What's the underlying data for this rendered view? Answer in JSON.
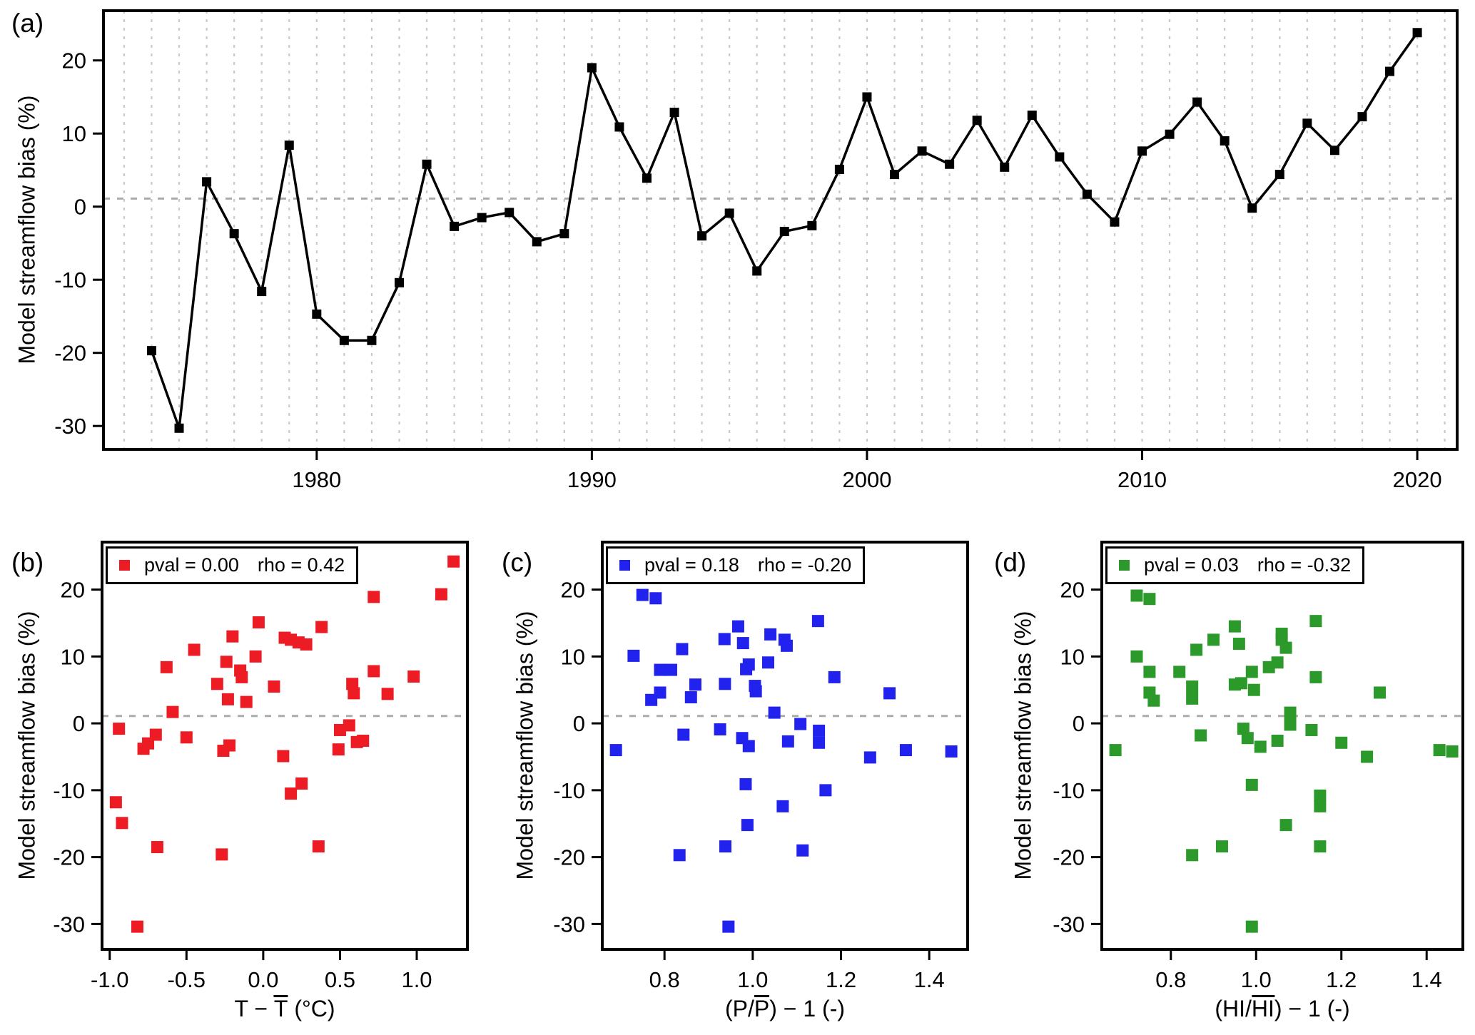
{
  "figure": {
    "background": "#FFFFFF"
  },
  "ylabel": "Model streamflow bias (%)",
  "colors": {
    "black": "#000000",
    "red": "#ED1C24",
    "blue": "#2222EE",
    "green": "#2B9A2B",
    "grid": "#C9C9C9",
    "ref": "#ABABAB"
  },
  "chart_data": [
    {
      "id": "a",
      "type": "line",
      "panel_label": "(a)",
      "color_key": "black",
      "xlim": [
        1972.25,
        2021.45
      ],
      "ylim": [
        -33.2,
        26.8
      ],
      "x_tick_values": [
        1980,
        1990,
        2000,
        2010,
        2020
      ],
      "x_tick_labels": [
        "1980",
        "1990",
        "2000",
        "2010",
        "2020"
      ],
      "y_tick_values": [
        -30,
        -20,
        -10,
        0,
        10,
        20
      ],
      "y_tick_labels": [
        "-30",
        "-20",
        "-10",
        "0",
        "10",
        "20"
      ],
      "grid_years": [
        1973,
        2021
      ],
      "ref_line_y": 1.1,
      "x": [
        1974,
        1975,
        1976,
        1977,
        1978,
        1979,
        1980,
        1981,
        1982,
        1983,
        1984,
        1985,
        1986,
        1987,
        1988,
        1989,
        1990,
        1991,
        1992,
        1993,
        1994,
        1995,
        1996,
        1997,
        1998,
        1999,
        2000,
        2001,
        2002,
        2003,
        2004,
        2005,
        2006,
        2007,
        2008,
        2009,
        2010,
        2011,
        2012,
        2013,
        2014,
        2015,
        2016,
        2017,
        2018,
        2019,
        2020
      ],
      "y": [
        -19.7,
        -30.3,
        3.4,
        -3.7,
        -11.6,
        8.4,
        -14.7,
        -18.3,
        -18.3,
        -10.4,
        5.8,
        -2.7,
        -1.5,
        -0.8,
        -4.8,
        -3.7,
        19.0,
        10.9,
        3.9,
        12.9,
        -4.0,
        -0.9,
        -8.8,
        -3.4,
        -2.6,
        5.1,
        15.0,
        4.4,
        7.6,
        5.8,
        11.8,
        5.4,
        12.5,
        6.8,
        1.7,
        -2.1,
        7.6,
        9.9,
        14.3,
        9.0,
        -0.2,
        4.4,
        11.4,
        7.7,
        12.3,
        18.5,
        23.8
      ]
    },
    {
      "id": "b",
      "type": "scatter",
      "panel_label": "(b)",
      "color_key": "red",
      "legend": {
        "pval": "pval = 0.00",
        "rho": "rho = 0.42"
      },
      "xlabel_parts": {
        "pre": "T − ",
        "over": "T",
        "post": "  (°C)"
      },
      "xlim": [
        -1.05,
        1.33
      ],
      "ylim": [
        -33.8,
        27.1
      ],
      "x_tick_values": [
        -1.0,
        -0.5,
        0.0,
        0.5,
        1.0
      ],
      "x_tick_labels": [
        "-1.0",
        "-0.5",
        "0.0",
        "0.5",
        "1.0"
      ],
      "y_tick_values": [
        -30,
        -20,
        -10,
        0,
        10,
        20
      ],
      "y_tick_labels": [
        "-30",
        "-20",
        "-10",
        "0",
        "10",
        "20"
      ],
      "ref_line_y": 1.1,
      "points": [
        [
          -0.96,
          -11.8
        ],
        [
          -0.94,
          -0.8
        ],
        [
          -0.92,
          -14.9
        ],
        [
          -0.82,
          -30.4
        ],
        [
          -0.78,
          -3.8
        ],
        [
          -0.75,
          -3.0
        ],
        [
          -0.7,
          -1.7
        ],
        [
          -0.69,
          -18.5
        ],
        [
          -0.63,
          8.4
        ],
        [
          -0.59,
          1.7
        ],
        [
          -0.5,
          -2.1
        ],
        [
          -0.45,
          11.0
        ],
        [
          -0.3,
          5.9
        ],
        [
          -0.27,
          -19.6
        ],
        [
          -0.26,
          -4.1
        ],
        [
          -0.24,
          9.2
        ],
        [
          -0.23,
          3.6
        ],
        [
          -0.22,
          -3.3
        ],
        [
          -0.2,
          13.0
        ],
        [
          -0.15,
          7.9
        ],
        [
          -0.14,
          6.9
        ],
        [
          -0.11,
          3.2
        ],
        [
          -0.05,
          10.0
        ],
        [
          -0.03,
          15.1
        ],
        [
          0.07,
          5.5
        ],
        [
          0.13,
          -4.9
        ],
        [
          0.14,
          12.8
        ],
        [
          0.18,
          12.5
        ],
        [
          0.18,
          -10.5
        ],
        [
          0.23,
          12.1
        ],
        [
          0.25,
          -9.0
        ],
        [
          0.28,
          11.8
        ],
        [
          0.36,
          -18.4
        ],
        [
          0.38,
          14.4
        ],
        [
          0.49,
          -3.9
        ],
        [
          0.5,
          -1.0
        ],
        [
          0.56,
          -0.3
        ],
        [
          0.58,
          5.9
        ],
        [
          0.59,
          4.5
        ],
        [
          0.61,
          -2.8
        ],
        [
          0.65,
          -2.6
        ],
        [
          0.72,
          18.9
        ],
        [
          0.72,
          7.8
        ],
        [
          0.81,
          4.4
        ],
        [
          0.98,
          7.0
        ],
        [
          1.16,
          19.3
        ],
        [
          1.24,
          24.2
        ]
      ]
    },
    {
      "id": "c",
      "type": "scatter",
      "panel_label": "(c)",
      "color_key": "blue",
      "legend": {
        "pval": "pval = 0.18",
        "rho": "rho = -0.20"
      },
      "xlabel_parts": {
        "pre": "(P/",
        "over": "P",
        "post": ") − 1  (-)"
      },
      "xlim": [
        0.659,
        1.487
      ],
      "ylim": [
        -33.8,
        27.1
      ],
      "x_tick_values": [
        0.8,
        1.0,
        1.2,
        1.4
      ],
      "x_tick_labels": [
        "0.8",
        "1.0",
        "1.2",
        "1.4"
      ],
      "y_tick_values": [
        -30,
        -20,
        -10,
        0,
        10,
        20
      ],
      "y_tick_labels": [
        "-30",
        "-20",
        "-10",
        "0",
        "10",
        "20"
      ],
      "ref_line_y": 1.1,
      "points": [
        [
          0.69,
          -4.0
        ],
        [
          0.73,
          10.1
        ],
        [
          0.75,
          19.2
        ],
        [
          0.78,
          18.7
        ],
        [
          0.77,
          3.5
        ],
        [
          0.79,
          8.0
        ],
        [
          0.815,
          8.0
        ],
        [
          0.79,
          4.6
        ],
        [
          0.84,
          11.1
        ],
        [
          0.843,
          -1.7
        ],
        [
          0.86,
          3.9
        ],
        [
          0.87,
          5.8
        ],
        [
          0.834,
          -19.7
        ],
        [
          0.936,
          12.6
        ],
        [
          0.937,
          5.9
        ],
        [
          0.926,
          -0.9
        ],
        [
          0.938,
          -18.4
        ],
        [
          0.945,
          -30.4
        ],
        [
          0.967,
          14.5
        ],
        [
          0.978,
          12.0
        ],
        [
          0.985,
          8.1
        ],
        [
          0.991,
          8.8
        ],
        [
          0.976,
          -2.2
        ],
        [
          0.984,
          -9.1
        ],
        [
          0.991,
          -3.4
        ],
        [
          0.988,
          -15.2
        ],
        [
          1.005,
          5.6
        ],
        [
          1.007,
          4.8
        ],
        [
          1.035,
          9.1
        ],
        [
          1.04,
          13.3
        ],
        [
          1.049,
          1.6
        ],
        [
          1.068,
          -12.4
        ],
        [
          1.072,
          12.5
        ],
        [
          1.077,
          11.6
        ],
        [
          1.08,
          -2.7
        ],
        [
          1.108,
          -0.1
        ],
        [
          1.113,
          -19.0
        ],
        [
          1.148,
          15.3
        ],
        [
          1.15,
          -1.1
        ],
        [
          1.15,
          -2.9
        ],
        [
          1.165,
          -10.0
        ],
        [
          1.185,
          6.9
        ],
        [
          1.266,
          -5.1
        ],
        [
          1.31,
          4.5
        ],
        [
          1.347,
          -4.0
        ],
        [
          1.45,
          -4.2
        ]
      ]
    },
    {
      "id": "d",
      "type": "scatter",
      "panel_label": "(d)",
      "color_key": "green",
      "legend": {
        "pval": "pval = 0.03",
        "rho": "rho = -0.32"
      },
      "xlabel_parts": {
        "pre": "(HI/",
        "over": "HI",
        "post": ") − 1  (-)"
      },
      "xlim": [
        0.638,
        1.485
      ],
      "ylim": [
        -33.8,
        27.1
      ],
      "x_tick_values": [
        0.8,
        1.0,
        1.2,
        1.4
      ],
      "x_tick_labels": [
        "0.8",
        "1.0",
        "1.2",
        "1.4"
      ],
      "y_tick_values": [
        -30,
        -20,
        -10,
        0,
        10,
        20
      ],
      "y_tick_labels": [
        "-30",
        "-20",
        "-10",
        "0",
        "10",
        "20"
      ],
      "ref_line_y": 1.1,
      "points": [
        [
          0.67,
          -4.0
        ],
        [
          0.72,
          19.1
        ],
        [
          0.75,
          18.6
        ],
        [
          0.72,
          10.0
        ],
        [
          0.75,
          7.7
        ],
        [
          0.75,
          4.6
        ],
        [
          0.76,
          3.4
        ],
        [
          0.82,
          7.7
        ],
        [
          0.85,
          5.5
        ],
        [
          0.85,
          3.7
        ],
        [
          0.86,
          11.0
        ],
        [
          0.87,
          -1.8
        ],
        [
          0.85,
          -19.7
        ],
        [
          0.9,
          12.5
        ],
        [
          0.92,
          -18.4
        ],
        [
          0.95,
          14.5
        ],
        [
          0.96,
          11.9
        ],
        [
          0.95,
          5.8
        ],
        [
          0.965,
          6.0
        ],
        [
          0.97,
          -0.8
        ],
        [
          0.98,
          -2.2
        ],
        [
          0.99,
          -30.4
        ],
        [
          0.99,
          7.7
        ],
        [
          0.995,
          5.0
        ],
        [
          0.99,
          -9.2
        ],
        [
          1.01,
          -3.5
        ],
        [
          1.03,
          8.4
        ],
        [
          1.05,
          9.1
        ],
        [
          1.05,
          -2.6
        ],
        [
          1.06,
          12.5
        ],
        [
          1.06,
          13.4
        ],
        [
          1.07,
          11.3
        ],
        [
          1.07,
          -15.2
        ],
        [
          1.08,
          1.6
        ],
        [
          1.08,
          -0.2
        ],
        [
          1.13,
          -1.0
        ],
        [
          1.14,
          15.3
        ],
        [
          1.14,
          6.9
        ],
        [
          1.15,
          -10.8
        ],
        [
          1.15,
          -12.4
        ],
        [
          1.15,
          -18.4
        ],
        [
          1.2,
          -2.9
        ],
        [
          1.26,
          -5.0
        ],
        [
          1.29,
          4.6
        ],
        [
          1.43,
          -4.0
        ],
        [
          1.46,
          -4.2
        ]
      ]
    }
  ]
}
